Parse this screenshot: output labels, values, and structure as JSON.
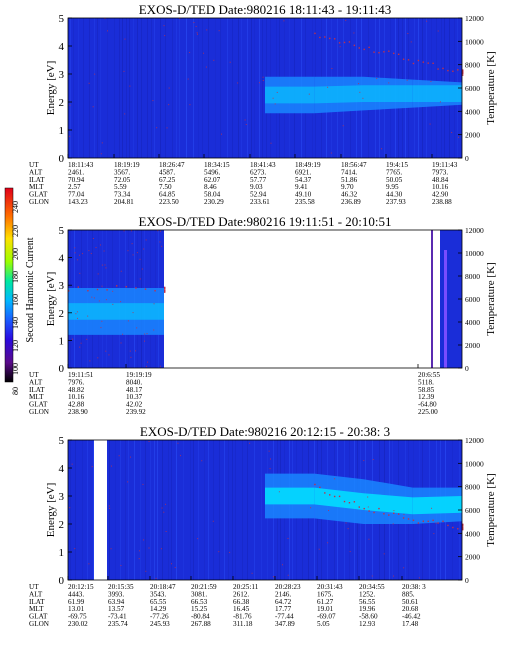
{
  "colorbar": {
    "label": "Second Harmonic Current",
    "ticks": [
      "240",
      "220",
      "200",
      "180",
      "160",
      "140",
      "120",
      "100",
      "80"
    ]
  },
  "panels": [
    {
      "title": "EXOS-D/TED   Date:980216  18:11:43 - 19:11:43",
      "ylabel_left": "Energy [eV]",
      "ylabel_right": "Temperature [K]",
      "eph_labels": [
        "UT",
        "ALT",
        "ILAT",
        "MLT",
        "GLAT",
        "GLON"
      ],
      "columns": [
        [
          "18:11:43",
          "2461.",
          "70.94",
          "2.57",
          "77.04",
          "143.23"
        ],
        [
          "18:19:19",
          "3567.",
          "72.05",
          "5.59",
          "73.34",
          "204.81"
        ],
        [
          "18:26:47",
          "4587.",
          "67.25",
          "7.50",
          "64.85",
          "223.50"
        ],
        [
          "18:34:15",
          "5496.",
          "62.07",
          "8.46",
          "58.04",
          "230.29"
        ],
        [
          "18:41:43",
          "6273.",
          "57.77",
          "9.03",
          "52.94",
          "233.61"
        ],
        [
          "18:49:19",
          "6921.",
          "54.37",
          "9.41",
          "49.10",
          "235.58"
        ],
        [
          "18:56:47",
          "7414.",
          "51.86",
          "9.70",
          "46.32",
          "236.89"
        ],
        [
          "19:4:15",
          "7765.",
          "50.05",
          "9.95",
          "44.30",
          "237.93"
        ],
        [
          "19:11:43",
          "7973.",
          "48.84",
          "10.16",
          "42.90",
          "238.88"
        ]
      ]
    },
    {
      "title": "EXOS-D/TED   Date:980216  19:11:51 - 20:10:51",
      "ylabel_left": "Energy [eV]",
      "ylabel_right": "Temperature [K]",
      "eph_labels": [
        "UT",
        "ALT",
        "ILAT",
        "MLT",
        "GLAT",
        "GLON"
      ],
      "columns": [
        [
          "19:11:51",
          "7976.",
          "48.82",
          "10.16",
          "42.88",
          "238.90"
        ],
        [
          "19:19:19",
          "8040.",
          "48.17",
          "10.37",
          "42.02",
          "239.92"
        ],
        [
          "20:6:55",
          "5118.",
          "58.85",
          "12.39",
          "-64.80",
          "225.00"
        ]
      ]
    },
    {
      "title": "EXOS-D/TED   Date:980216  20:12:15 - 20:38: 3",
      "ylabel_left": "Energy [eV]",
      "ylabel_right": "Temperature [K]",
      "eph_labels": [
        "UT",
        "ALT",
        "ILAT",
        "MLT",
        "GLAT",
        "GLON"
      ],
      "columns": [
        [
          "20:12:15",
          "4443.",
          "61.99",
          "13.01",
          "-69.75",
          "230.02"
        ],
        [
          "20:15:35",
          "3993.",
          "63.94",
          "13.57",
          "-73.41",
          "235.74"
        ],
        [
          "20:18:47",
          "3543.",
          "65.55",
          "14.29",
          "-77.26",
          "245.93"
        ],
        [
          "20:21:59",
          "3081.",
          "66.53",
          "15.25",
          "-80.84",
          "267.88"
        ],
        [
          "20:25:11",
          "2612.",
          "66.38",
          "16.45",
          "-81.76",
          "311.18"
        ],
        [
          "20:28:23",
          "2146.",
          "64.72",
          "17.77",
          "-77.44",
          "347.89"
        ],
        [
          "20:31:43",
          "1675.",
          "61.27",
          "19.01",
          "-69.07",
          "5.05"
        ],
        [
          "20:34:55",
          "1252.",
          "56.55",
          "19.96",
          "-58.60",
          "12.93"
        ],
        [
          "20:38: 3",
          "885.",
          "50.61",
          "20.68",
          "-46.42",
          "17.48"
        ]
      ]
    }
  ],
  "chart_data": [
    {
      "type": "heatmap",
      "title": "EXOS-D/TED   Date:980216  18:11:43 - 19:11:43",
      "xlabel": "UT",
      "ylabel": "Energy [eV]",
      "y2label": "Temperature [K]",
      "ylim": [
        0,
        5
      ],
      "y2lim": [
        0,
        12000
      ],
      "yticks": [
        0,
        1,
        2,
        3,
        4,
        5
      ],
      "y2ticks": [
        0,
        2000,
        4000,
        6000,
        8000,
        10000,
        12000
      ],
      "x_ticks": [
        "18:11:43",
        "18:19:19",
        "18:26:47",
        "18:34:15",
        "18:41:43",
        "18:49:19",
        "18:56:47",
        "19:4:15",
        "19:11:43"
      ],
      "band_energy_eV": [
        [
          0,
          0
        ],
        [
          0,
          0
        ],
        [
          0,
          0
        ],
        [
          0,
          0
        ],
        [
          0,
          0
        ],
        [
          1.6,
          2.9
        ],
        [
          1.7,
          2.9
        ],
        [
          1.8,
          2.8
        ],
        [
          1.9,
          2.7
        ]
      ],
      "temperature_K": [
        null,
        null,
        null,
        null,
        null,
        10500,
        9600,
        8400,
        7400
      ]
    },
    {
      "type": "heatmap",
      "title": "EXOS-D/TED   Date:980216  19:11:51 - 20:10:51",
      "xlabel": "UT",
      "ylabel": "Energy [eV]",
      "y2label": "Temperature [K]",
      "ylim": [
        0,
        5
      ],
      "y2lim": [
        0,
        12000
      ],
      "yticks": [
        0,
        1,
        2,
        3,
        4,
        5
      ],
      "y2ticks": [
        0,
        2000,
        4000,
        6000,
        8000,
        10000,
        12000
      ],
      "x_ticks": [
        "19:11:51",
        "19:19:19",
        "20:6:55"
      ],
      "band_energy_eV": [
        [
          1.2,
          2.9
        ],
        [
          1.2,
          2.9
        ]
      ],
      "temperature_K": [
        7000,
        6900
      ]
    },
    {
      "type": "heatmap",
      "title": "EXOS-D/TED   Date:980216  20:12:15 - 20:38: 3",
      "xlabel": "UT",
      "ylabel": "Energy [eV]",
      "y2label": "Temperature [K]",
      "ylim": [
        0,
        5
      ],
      "y2lim": [
        0,
        12000
      ],
      "yticks": [
        0,
        1,
        2,
        3,
        4,
        5
      ],
      "y2ticks": [
        0,
        2000,
        4000,
        6000,
        8000,
        10000,
        12000
      ],
      "x_ticks": [
        "20:12:15",
        "20:15:35",
        "20:18:47",
        "20:21:59",
        "20:25:11",
        "20:28:23",
        "20:31:43",
        "20:34:55",
        "20:38: 3"
      ],
      "band_energy_eV": [
        [
          0,
          0
        ],
        [
          0,
          0
        ],
        [
          0,
          0
        ],
        [
          0,
          0
        ],
        [
          0,
          0
        ],
        [
          2.2,
          3.8
        ],
        [
          2.0,
          3.6
        ],
        [
          2.0,
          3.3
        ],
        [
          2.1,
          3.3
        ]
      ],
      "temperature_K": [
        null,
        null,
        null,
        null,
        null,
        8000,
        6300,
        5200,
        4600
      ]
    }
  ],
  "colors": {
    "background": "#1a2dd8",
    "band": "#1a86ff",
    "band_core": "#00e8ff",
    "dots": "#c0304a",
    "gap": "#ffffff"
  }
}
